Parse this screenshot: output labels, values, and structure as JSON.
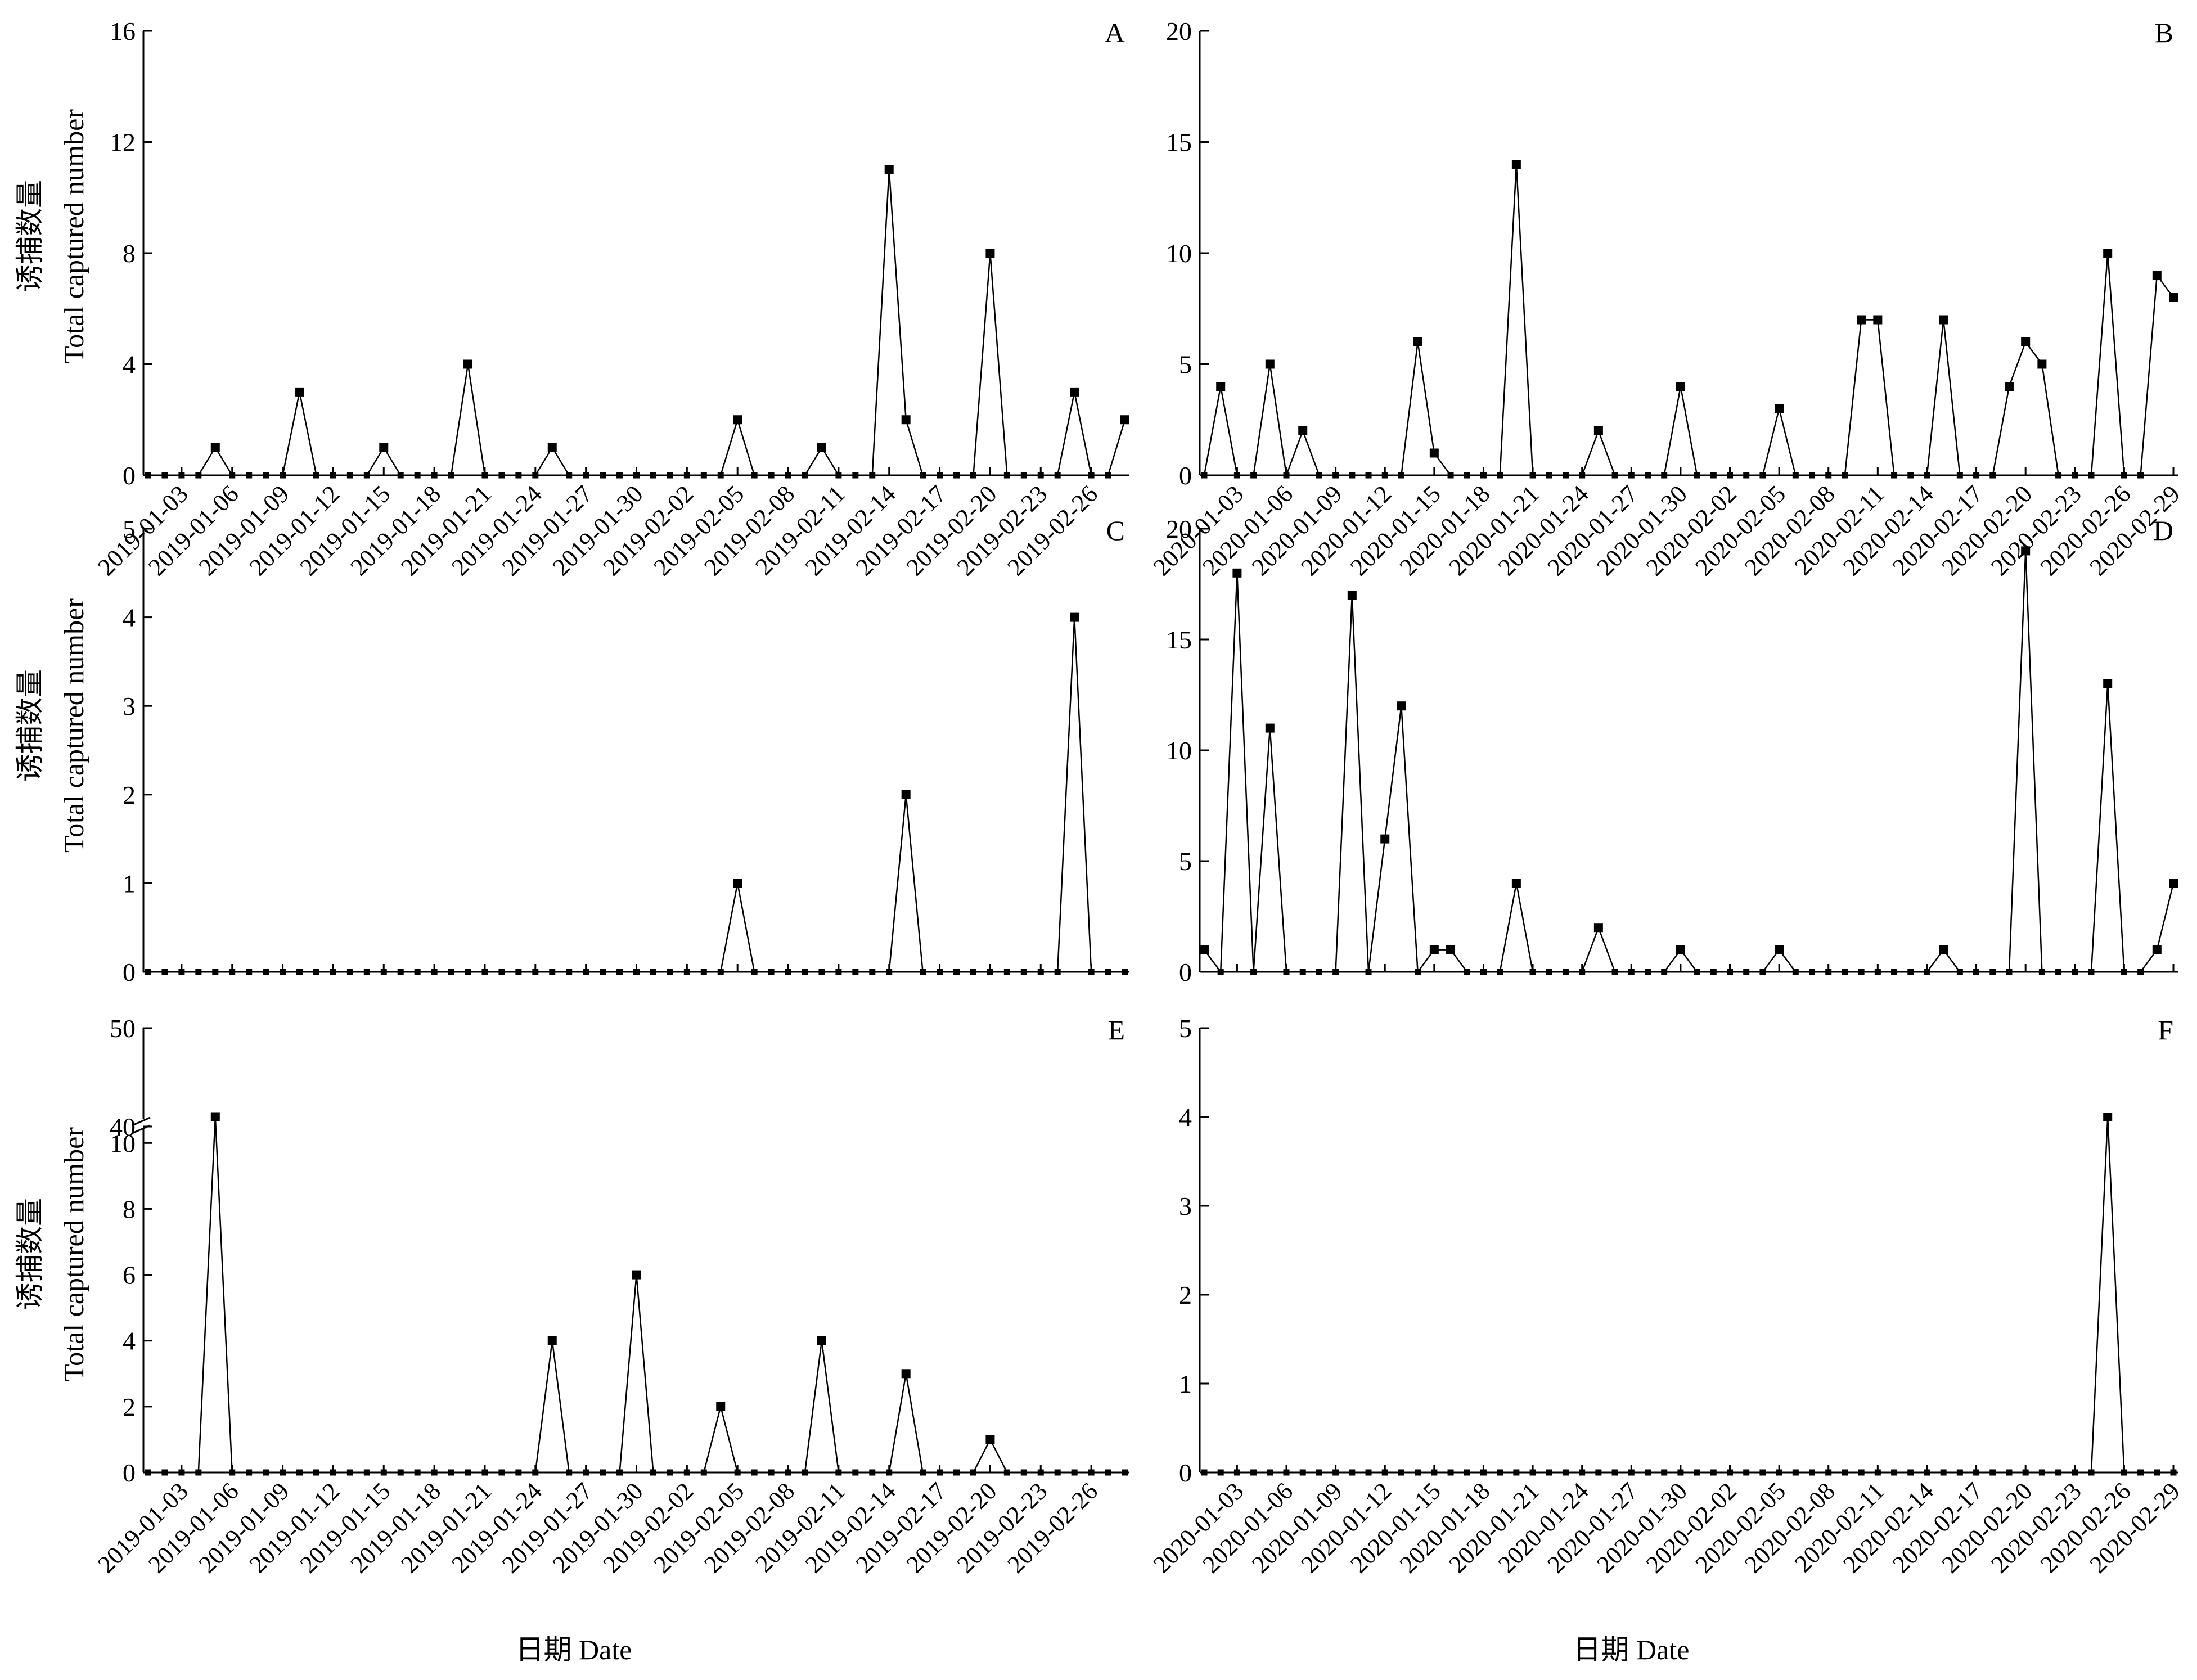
{
  "figure": {
    "ylabel_cn": "诱捕数量",
    "ylabel_en": "Total captured number",
    "xlabel": "日期  Date"
  },
  "chart_data": [
    {
      "type": "line",
      "panel": "A",
      "ylim": [
        0,
        16
      ],
      "yticks": [
        0,
        4,
        8,
        12,
        16
      ],
      "x_start": "2019-01-01",
      "x_end": "2019-02-28",
      "x_tick_labels": [
        "2019-01-03",
        "2019-01-06",
        "2019-01-09",
        "2019-01-12",
        "2019-01-15",
        "2019-01-18",
        "2019-01-21",
        "2019-01-24",
        "2019-01-27",
        "2019-01-30",
        "2019-02-02",
        "2019-02-05",
        "2019-02-08",
        "2019-02-11",
        "2019-02-14",
        "2019-02-17",
        "2019-02-20",
        "2019-02-23",
        "2019-02-26"
      ],
      "values": [
        0,
        0,
        0,
        0,
        1,
        0,
        0,
        0,
        0,
        3,
        0,
        0,
        0,
        0,
        1,
        0,
        0,
        0,
        0,
        4,
        0,
        0,
        0,
        0,
        1,
        0,
        0,
        0,
        0,
        0,
        0,
        0,
        0,
        0,
        0,
        2,
        0,
        0,
        0,
        0,
        1,
        0,
        0,
        0,
        11,
        2,
        0,
        0,
        0,
        0,
        8,
        0,
        0,
        0,
        0,
        3,
        0,
        0,
        2
      ],
      "grid": false,
      "marker": "square"
    },
    {
      "type": "line",
      "panel": "B",
      "ylim": [
        0,
        20
      ],
      "yticks": [
        0,
        5,
        10,
        15,
        20
      ],
      "x_start": "2020-01-01",
      "x_end": "2020-02-29",
      "x_tick_labels": [
        "2020-01-03",
        "2020-01-06",
        "2020-01-09",
        "2020-01-12",
        "2020-01-15",
        "2020-01-18",
        "2020-01-21",
        "2020-01-24",
        "2020-01-27",
        "2020-01-30",
        "2020-02-02",
        "2020-02-05",
        "2020-02-08",
        "2020-02-11",
        "2020-02-14",
        "2020-02-17",
        "2020-02-20",
        "2020-02-23",
        "2020-02-26",
        "2020-02-29"
      ],
      "values": [
        0,
        4,
        0,
        0,
        5,
        0,
        2,
        0,
        0,
        0,
        0,
        0,
        0,
        6,
        1,
        0,
        0,
        0,
        0,
        14,
        0,
        0,
        0,
        0,
        2,
        0,
        0,
        0,
        0,
        4,
        0,
        0,
        0,
        0,
        0,
        3,
        0,
        0,
        0,
        0,
        7,
        7,
        0,
        0,
        0,
        7,
        0,
        0,
        0,
        4,
        6,
        5,
        0,
        0,
        0,
        10,
        0,
        0,
        9,
        8
      ],
      "grid": false,
      "marker": "square"
    },
    {
      "type": "line",
      "panel": "C",
      "ylim": [
        0,
        5
      ],
      "yticks": [
        0,
        1,
        2,
        3,
        4,
        5
      ],
      "x_start": "2019-01-01",
      "x_end": "2019-02-28",
      "x_tick_labels": [],
      "values": [
        0,
        0,
        0,
        0,
        0,
        0,
        0,
        0,
        0,
        0,
        0,
        0,
        0,
        0,
        0,
        0,
        0,
        0,
        0,
        0,
        0,
        0,
        0,
        0,
        0,
        0,
        0,
        0,
        0,
        0,
        0,
        0,
        0,
        0,
        0,
        1,
        0,
        0,
        0,
        0,
        0,
        0,
        0,
        0,
        0,
        2,
        0,
        0,
        0,
        0,
        0,
        0,
        0,
        0,
        0,
        4,
        0,
        0,
        0
      ],
      "grid": false,
      "marker": "square"
    },
    {
      "type": "line",
      "panel": "D",
      "ylim": [
        0,
        20
      ],
      "yticks": [
        0,
        5,
        10,
        15,
        20
      ],
      "x_start": "2020-01-01",
      "x_end": "2020-02-29",
      "x_tick_labels": [],
      "values": [
        1,
        0,
        18,
        0,
        11,
        0,
        0,
        0,
        0,
        17,
        0,
        6,
        12,
        0,
        1,
        1,
        0,
        0,
        0,
        4,
        0,
        0,
        0,
        0,
        2,
        0,
        0,
        0,
        0,
        1,
        0,
        0,
        0,
        0,
        0,
        1,
        0,
        0,
        0,
        0,
        0,
        0,
        0,
        0,
        0,
        1,
        0,
        0,
        0,
        0,
        19,
        0,
        0,
        0,
        0,
        13,
        0,
        0,
        1,
        4
      ],
      "grid": false,
      "marker": "square"
    },
    {
      "type": "line",
      "panel": "E",
      "ylim": [
        0,
        50
      ],
      "y_axis_break": [
        10.5,
        40
      ],
      "yticks": [
        0,
        2,
        4,
        6,
        8,
        10,
        40,
        50
      ],
      "x_start": "2019-01-01",
      "x_end": "2019-02-28",
      "x_tick_labels": [
        "2019-01-03",
        "2019-01-06",
        "2019-01-09",
        "2019-01-12",
        "2019-01-15",
        "2019-01-18",
        "2019-01-21",
        "2019-01-24",
        "2019-01-27",
        "2019-01-30",
        "2019-02-02",
        "2019-02-05",
        "2019-02-08",
        "2019-02-11",
        "2019-02-14",
        "2019-02-17",
        "2019-02-20",
        "2019-02-23",
        "2019-02-26"
      ],
      "values": [
        0,
        0,
        0,
        0,
        41,
        0,
        0,
        0,
        0,
        0,
        0,
        0,
        0,
        0,
        0,
        0,
        0,
        0,
        0,
        0,
        0,
        0,
        0,
        0,
        4,
        0,
        0,
        0,
        0,
        6,
        0,
        0,
        0,
        0,
        2,
        0,
        0,
        0,
        0,
        0,
        4,
        0,
        0,
        0,
        0,
        3,
        0,
        0,
        0,
        0,
        1,
        0,
        0,
        0,
        0,
        0,
        0,
        0,
        0
      ],
      "grid": false,
      "marker": "square"
    },
    {
      "type": "line",
      "panel": "F",
      "ylim": [
        0,
        5
      ],
      "yticks": [
        0,
        1,
        2,
        3,
        4,
        5
      ],
      "x_start": "2020-01-01",
      "x_end": "2020-02-29",
      "x_tick_labels": [
        "2020-01-03",
        "2020-01-06",
        "2020-01-09",
        "2020-01-12",
        "2020-01-15",
        "2020-01-18",
        "2020-01-21",
        "2020-01-24",
        "2020-01-27",
        "2020-01-30",
        "2020-02-02",
        "2020-02-05",
        "2020-02-08",
        "2020-02-11",
        "2020-02-14",
        "2020-02-17",
        "2020-02-20",
        "2020-02-23",
        "2020-02-26",
        "2020-02-29"
      ],
      "values": [
        0,
        0,
        0,
        0,
        0,
        0,
        0,
        0,
        0,
        0,
        0,
        0,
        0,
        0,
        0,
        0,
        0,
        0,
        0,
        0,
        0,
        0,
        0,
        0,
        0,
        0,
        0,
        0,
        0,
        0,
        0,
        0,
        0,
        0,
        0,
        0,
        0,
        0,
        0,
        0,
        0,
        0,
        0,
        0,
        0,
        0,
        0,
        0,
        0,
        0,
        0,
        0,
        0,
        0,
        0,
        4,
        0,
        0,
        0,
        0
      ],
      "grid": false,
      "marker": "square"
    }
  ]
}
